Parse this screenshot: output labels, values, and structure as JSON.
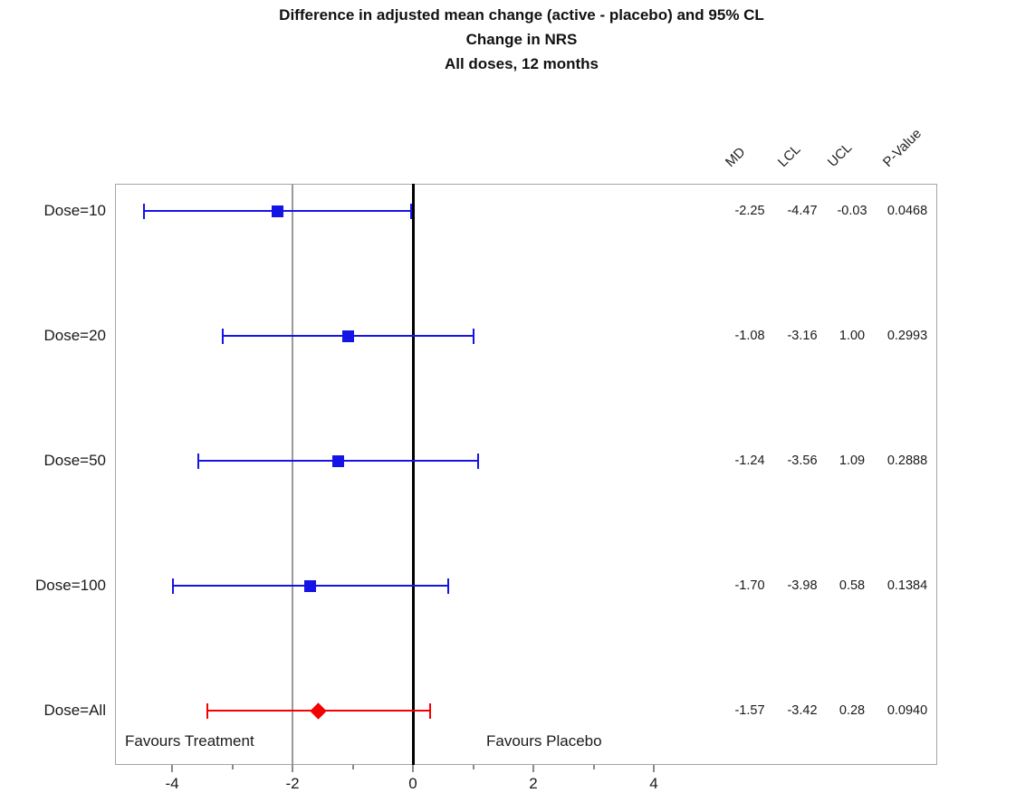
{
  "page": {
    "title_lines": [
      "Difference in adjusted mean change (active - placebo) and 95% CL",
      "Change in NRS",
      "All doses, 12 months"
    ]
  },
  "colors": {
    "treatment": "#1414e6",
    "combined": "#f50000",
    "zero_line": "#000000",
    "ref_line": "#999999",
    "frame": "#a6a6a6",
    "tick": "#8a8a8a",
    "text": "#1a1a1a"
  },
  "chart_data": {
    "type": "scatter",
    "variant": "forest-plot-with-error-bars-and-stat-table",
    "title": "Difference in adjusted mean change (active - placebo) and 95% CL",
    "subtitle": "Change in NRS",
    "subtitle2": "All doses, 12 months",
    "categories": [
      "Dose=10",
      "Dose=20",
      "Dose=50",
      "Dose=100",
      "Dose=All"
    ],
    "value_columns": [
      "MD",
      "LCL",
      "UCL",
      "P-Value"
    ],
    "rows": [
      {
        "label": "Dose=10",
        "values": [
          "-2.25",
          "-4.47",
          "-0.03",
          "0.0468"
        ],
        "marker": "square",
        "color_key": "treatment"
      },
      {
        "label": "Dose=20",
        "values": [
          "-1.08",
          "-3.16",
          "1.00",
          "0.2993"
        ],
        "marker": "square",
        "color_key": "treatment"
      },
      {
        "label": "Dose=50",
        "values": [
          "-1.24",
          "-3.56",
          "1.09",
          "0.2888"
        ],
        "marker": "square",
        "color_key": "treatment"
      },
      {
        "label": "Dose=100",
        "values": [
          "-1.70",
          "-3.98",
          "0.58",
          "0.1384"
        ],
        "marker": "square",
        "color_key": "treatment"
      },
      {
        "label": "Dose=All",
        "values": [
          "-1.57",
          "-3.42",
          "0.28",
          "0.0940"
        ],
        "marker": "diamond",
        "color_key": "combined"
      }
    ],
    "x_axis": {
      "major_ticks": [
        -4,
        -2,
        0,
        2,
        4
      ],
      "minor_ticks": [
        -3,
        -1,
        1,
        3
      ]
    },
    "reference_lines": [
      {
        "x": 0,
        "color_key": "zero_line",
        "thickness": 3
      },
      {
        "x": -2,
        "color_key": "ref_line",
        "thickness": 2
      }
    ],
    "annotations": [
      {
        "text": "Favours Treatment",
        "side": "left"
      },
      {
        "text": "Favours Placebo",
        "side": "right"
      }
    ],
    "legend": "none",
    "grid": "off"
  }
}
